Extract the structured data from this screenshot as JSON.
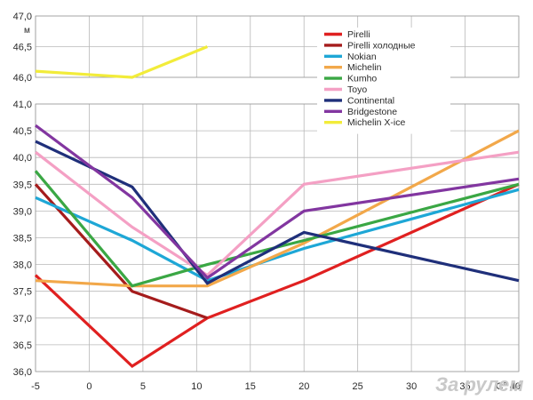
{
  "chart_data": {
    "type": "line",
    "xlim": [
      -5,
      40
    ],
    "x_ticks": [
      -5,
      0,
      5,
      10,
      15,
      20,
      25,
      30,
      35,
      40
    ],
    "x_tick_labels": [
      "-5",
      "0",
      "5",
      "10",
      "15",
      "20",
      "25",
      "30",
      "35",
      "C° 40"
    ],
    "panels": [
      {
        "ylim": [
          46.0,
          47.0
        ],
        "y_ticks": [
          46.0,
          46.5,
          47.0
        ],
        "y_tick_labels": [
          "46,0",
          "46,5",
          "47,0"
        ],
        "unit": "м"
      },
      {
        "ylim": [
          36.0,
          41.0
        ],
        "y_ticks": [
          36.0,
          36.5,
          37.0,
          37.5,
          38.0,
          38.5,
          39.0,
          39.5,
          40.0,
          40.5,
          41.0
        ],
        "y_tick_labels": [
          "36,0",
          "36,5",
          "37,0",
          "37,5",
          "38,0",
          "38,5",
          "39,0",
          "39,5",
          "40,0",
          "40,5",
          "41,0"
        ]
      }
    ],
    "grid": true,
    "legend_position": "top-right",
    "series": [
      {
        "name": "Pirelli",
        "color": "#e02020",
        "panel": 1,
        "points": [
          [
            -5,
            37.8
          ],
          [
            4,
            36.1
          ],
          [
            11,
            37.0
          ],
          [
            20,
            37.7
          ],
          [
            40,
            39.5
          ]
        ]
      },
      {
        "name": "Pirelli холодные",
        "color": "#a51c1c",
        "panel": 1,
        "points": [
          [
            -5,
            39.5
          ],
          [
            4,
            37.5
          ],
          [
            11,
            37.0
          ]
        ]
      },
      {
        "name": "Nokian",
        "color": "#1ea7d6",
        "panel": 1,
        "points": [
          [
            -5,
            39.25
          ],
          [
            4,
            38.45
          ],
          [
            11,
            37.7
          ],
          [
            20,
            38.3
          ],
          [
            40,
            39.4
          ]
        ]
      },
      {
        "name": "Michelin",
        "color": "#f2a84a",
        "panel": 1,
        "points": [
          [
            -5,
            37.7
          ],
          [
            4,
            37.6
          ],
          [
            11,
            37.6
          ],
          [
            20,
            38.4
          ],
          [
            40,
            40.5
          ]
        ]
      },
      {
        "name": "Kumho",
        "color": "#3aa744",
        "panel": 1,
        "points": [
          [
            -5,
            39.75
          ],
          [
            4,
            37.6
          ],
          [
            11,
            38.0
          ],
          [
            20,
            38.45
          ],
          [
            40,
            39.5
          ]
        ]
      },
      {
        "name": "Toyo",
        "color": "#f4a0c4",
        "panel": 1,
        "points": [
          [
            -5,
            40.1
          ],
          [
            4,
            38.7
          ],
          [
            11,
            37.8
          ],
          [
            20,
            39.5
          ],
          [
            40,
            40.1
          ]
        ]
      },
      {
        "name": "Continental",
        "color": "#1f2f7a",
        "panel": 1,
        "points": [
          [
            -5,
            40.3
          ],
          [
            4,
            39.45
          ],
          [
            11,
            37.65
          ],
          [
            20,
            38.6
          ],
          [
            40,
            37.7
          ]
        ]
      },
      {
        "name": "Bridgestone",
        "color": "#8236a0",
        "panel": 1,
        "points": [
          [
            -5,
            40.6
          ],
          [
            4,
            39.25
          ],
          [
            11,
            37.75
          ],
          [
            20,
            39.0
          ],
          [
            40,
            39.6
          ]
        ]
      },
      {
        "name": "Michelin X-ice",
        "color": "#f2ec3a",
        "panel": 0,
        "points": [
          [
            -5,
            46.1
          ],
          [
            4,
            46.0
          ],
          [
            11,
            46.5
          ]
        ]
      }
    ]
  },
  "watermark": "За рулем"
}
